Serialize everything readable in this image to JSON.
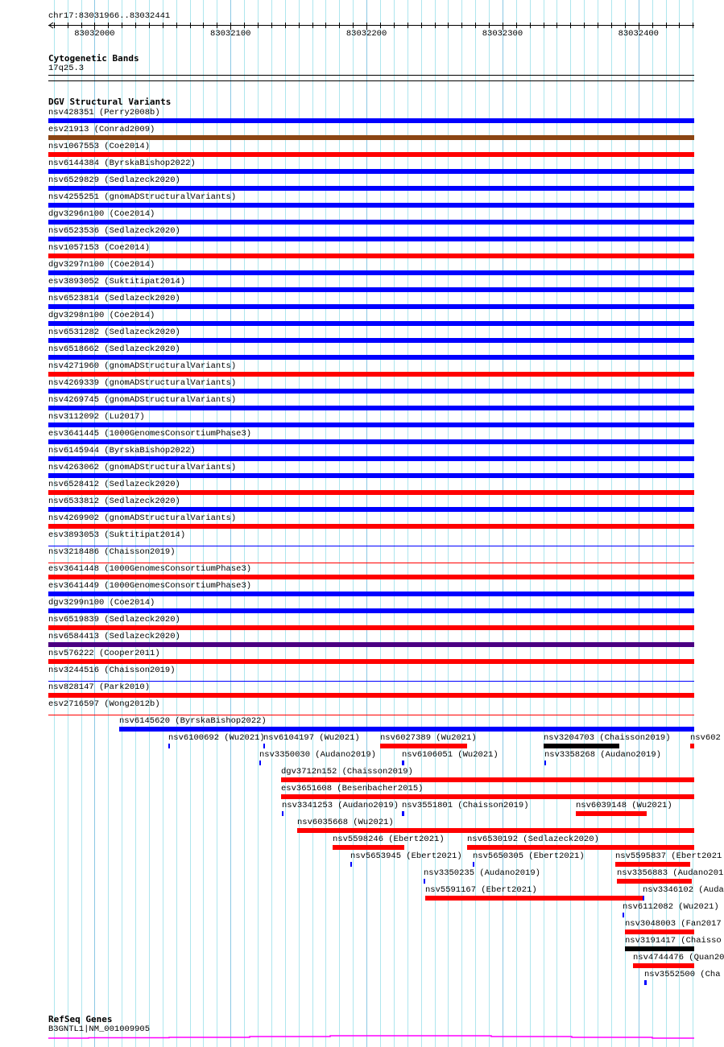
{
  "view": {
    "location": "chr17:83031966..83032441",
    "start": 83031966,
    "end": 83032441
  },
  "ruler": {
    "ticks": [
      "83032000",
      "83032100",
      "83032200",
      "83032300",
      "83032400"
    ]
  },
  "tracks": {
    "cytoband": {
      "title": "Cytogenetic Bands",
      "band": "17q25.3"
    },
    "dgv": {
      "title": "DGV Structural Variants"
    },
    "refseq": {
      "title": "RefSeq Genes",
      "gene": "B3GNTL1|NM_001009905",
      "color": "#ff00ff"
    }
  },
  "colors": {
    "loss": "#ff0000",
    "gain": "#0000ff",
    "complex": "#8b4513",
    "gainloss": "#4b0082",
    "inversion": "#000000",
    "grid": "#aee6ee",
    "grid_major": "#8cc8e4"
  },
  "full_rows": [
    {
      "label": "nsv428351 (Perry2008b)",
      "color": "#0000ff",
      "thin": false
    },
    {
      "label": "esv21913 (Conrad2009)",
      "color": "#8b4513",
      "thin": false
    },
    {
      "label": "nsv1067553 (Coe2014)",
      "color": "#ff0000",
      "thin": false
    },
    {
      "label": "nsv6144384 (ByrskaBishop2022)",
      "color": "#0000ff",
      "thin": false
    },
    {
      "label": "nsv6529829 (Sedlazeck2020)",
      "color": "#0000ff",
      "thin": false
    },
    {
      "label": "nsv4255251 (gnomADStructuralVariants)",
      "color": "#0000ff",
      "thin": false
    },
    {
      "label": "dgv3296n100 (Coe2014)",
      "color": "#0000ff",
      "thin": false
    },
    {
      "label": "nsv6523536 (Sedlazeck2020)",
      "color": "#0000ff",
      "thin": false
    },
    {
      "label": "nsv1057153 (Coe2014)",
      "color": "#ff0000",
      "thin": false
    },
    {
      "label": "dgv3297n100 (Coe2014)",
      "color": "#0000ff",
      "thin": false
    },
    {
      "label": "esv3893052 (Suktitipat2014)",
      "color": "#0000ff",
      "thin": false
    },
    {
      "label": "nsv6523814 (Sedlazeck2020)",
      "color": "#0000ff",
      "thin": false
    },
    {
      "label": "dgv3298n100 (Coe2014)",
      "color": "#0000ff",
      "thin": false
    },
    {
      "label": "nsv6531282 (Sedlazeck2020)",
      "color": "#0000ff",
      "thin": false
    },
    {
      "label": "nsv6518662 (Sedlazeck2020)",
      "color": "#0000ff",
      "thin": false
    },
    {
      "label": "nsv4271960 (gnomADStructuralVariants)",
      "color": "#ff0000",
      "thin": false
    },
    {
      "label": "nsv4269339 (gnomADStructuralVariants)",
      "color": "#0000ff",
      "thin": false
    },
    {
      "label": "nsv4269745 (gnomADStructuralVariants)",
      "color": "#0000ff",
      "thin": false
    },
    {
      "label": "nsv3112092 (Lu2017)",
      "color": "#0000ff",
      "thin": false
    },
    {
      "label": "esv3641445 (1000GenomesConsortiumPhase3)",
      "color": "#0000ff",
      "thin": false
    },
    {
      "label": "nsv6145944 (ByrskaBishop2022)",
      "color": "#0000ff",
      "thin": false
    },
    {
      "label": "nsv4263062 (gnomADStructuralVariants)",
      "color": "#0000ff",
      "thin": false
    },
    {
      "label": "nsv6528412 (Sedlazeck2020)",
      "color": "#ff0000",
      "thin": false
    },
    {
      "label": "nsv6533812 (Sedlazeck2020)",
      "color": "#0000ff",
      "thin": false
    },
    {
      "label": "nsv4269902 (gnomADStructuralVariants)",
      "color": "#ff0000",
      "thin": false
    },
    {
      "label": "esv3893053 (Suktitipat2014)",
      "color": "#0000ff",
      "thin": true
    },
    {
      "label": "nsv3218486 (Chaisson2019)",
      "color": "#ff0000",
      "thin": true
    },
    {
      "label": "esv3641448 (1000GenomesConsortiumPhase3)",
      "color": "#ff0000",
      "thin": false
    },
    {
      "label": "esv3641449 (1000GenomesConsortiumPhase3)",
      "color": "#0000ff",
      "thin": false
    },
    {
      "label": "dgv3299n100 (Coe2014)",
      "color": "#0000ff",
      "thin": false
    },
    {
      "label": "nsv6519839 (Sedlazeck2020)",
      "color": "#ff0000",
      "thin": false
    },
    {
      "label": "nsv6584413 (Sedlazeck2020)",
      "color": "#4b0082",
      "thin": false
    },
    {
      "label": "nsv576222 (Cooper2011)",
      "color": "#ff0000",
      "thin": false
    },
    {
      "label": "nsv3244516 (Chaisson2019)",
      "color": "#0000ff",
      "thin": true
    },
    {
      "label": "nsv828147 (Park2010)",
      "color": "#ff0000",
      "thin": false
    },
    {
      "label": "esv2716597 (Wong2012b)",
      "color": "#ff0000",
      "thin": true
    }
  ],
  "partial_features": [
    {
      "label": "nsv6145620 (ByrskaBishop2022)",
      "lane": 0,
      "start": 83032018,
      "end": 83032450,
      "color": "#0000ff"
    },
    {
      "label": "nsv6100692 (Wu2021)",
      "lane": 1,
      "start": 83032054,
      "end": 83032055,
      "color": "#0000ff"
    },
    {
      "label": "nsv6104197 (Wu2021)",
      "lane": 1,
      "start": 83032124,
      "end": 83032125,
      "color": "#0000ff"
    },
    {
      "label": "nsv6027389 (Wu2021)",
      "lane": 1,
      "start": 83032210,
      "end": 83032274,
      "color": "#ff0000"
    },
    {
      "label": "nsv3204703 (Chaisson2019)",
      "lane": 1,
      "start": 83032330,
      "end": 83032386,
      "color": "#000000"
    },
    {
      "label": "nsv602",
      "lane": 1,
      "start": 83032438,
      "end": 83032450,
      "color": "#ff0000"
    },
    {
      "label": "nsv3350030 (Audano2019)",
      "lane": 2,
      "start": 83032121,
      "end": 83032122,
      "color": "#0000ff"
    },
    {
      "label": "nsv6106051 (Wu2021)",
      "lane": 2,
      "start": 83032226,
      "end": 83032228,
      "color": "#0000ff"
    },
    {
      "label": "nsv3358268 (Audano2019)",
      "lane": 2,
      "start": 83032331,
      "end": 83032332,
      "color": "#0000ff"
    },
    {
      "label": "dgv3712n152 (Chaisson2019)",
      "lane": 3,
      "start": 83032137,
      "end": 83032450,
      "color": "#ff0000"
    },
    {
      "label": "esv3651608 (Besenbacher2015)",
      "lane": 4,
      "start": 83032137,
      "end": 83032450,
      "color": "#ff0000"
    },
    {
      "label": "nsv3341253 (Audano2019)",
      "lane": 5,
      "start": 83032138,
      "end": 83032139,
      "color": "#0000ff"
    },
    {
      "label": "nsv3551801 (Chaisson2019)",
      "lane": 5,
      "start": 83032226,
      "end": 83032228,
      "color": "#0000ff"
    },
    {
      "label": "nsv6039148 (Wu2021)",
      "lane": 5,
      "start": 83032354,
      "end": 83032406,
      "color": "#ff0000"
    },
    {
      "label": "nsv6035668 (Wu2021)",
      "lane": 6,
      "start": 83032149,
      "end": 83032450,
      "color": "#ff0000"
    },
    {
      "label": "nsv5598246 (Ebert2021)",
      "lane": 7,
      "start": 83032175,
      "end": 83032228,
      "color": "#ff0000"
    },
    {
      "label": "nsv6530192 (Sedlazeck2020)",
      "lane": 7,
      "start": 83032274,
      "end": 83032450,
      "color": "#ff0000"
    },
    {
      "label": "nsv5653945 (Ebert2021)",
      "lane": 8,
      "start": 83032188,
      "end": 83032189,
      "color": "#0000ff"
    },
    {
      "label": "nsv5650305 (Ebert2021)",
      "lane": 8,
      "start": 83032278,
      "end": 83032279,
      "color": "#0000ff"
    },
    {
      "label": "nsv5595837 (Ebert2021",
      "lane": 8,
      "start": 83032383,
      "end": 83032438,
      "color": "#ff0000"
    },
    {
      "label": "nsv3350235 (Audano2019)",
      "lane": 9,
      "start": 83032242,
      "end": 83032243,
      "color": "#0000ff"
    },
    {
      "label": "nsv3356883 (Audano201",
      "lane": 9,
      "start": 83032384,
      "end": 83032439,
      "color": "#ff0000"
    },
    {
      "label": "nsv5591167 (Ebert2021)",
      "lane": 10,
      "start": 83032243,
      "end": 83032403,
      "color": "#ff0000"
    },
    {
      "label": "nsv3346102 (Auda",
      "lane": 10,
      "start": 83032403,
      "end": 83032404,
      "color": "#0000ff"
    },
    {
      "label": "nsv6112082 (Wu2021)",
      "lane": 11,
      "start": 83032388,
      "end": 83032389,
      "color": "#0000ff"
    },
    {
      "label": "nsv3048003 (Fan2017",
      "lane": 12,
      "start": 83032390,
      "end": 83032450,
      "color": "#ff0000"
    },
    {
      "label": "nsv3191417 (Chaisso",
      "lane": 13,
      "start": 83032390,
      "end": 83032450,
      "color": "#000000"
    },
    {
      "label": "nsv4744476 (Quan20",
      "lane": 14,
      "start": 83032396,
      "end": 83032450,
      "color": "#ff0000"
    },
    {
      "label": "nsv3552500 (Cha",
      "lane": 15,
      "start": 83032404,
      "end": 83032406,
      "color": "#0000ff"
    }
  ]
}
